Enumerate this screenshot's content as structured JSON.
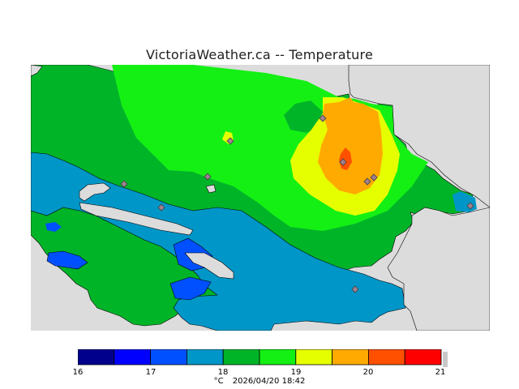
{
  "title": "VictoriaWeather.ca -- Temperature",
  "colors": {
    "land_gray": "#dcdcdc",
    "c1": "#00008c",
    "c2": "#0000ff",
    "c3": "#0050ff",
    "c4": "#0096c8",
    "c5": "#00b428",
    "c6": "#14f014",
    "c7": "#e6ff00",
    "c8": "#ffaa00",
    "c9": "#ff5000",
    "c10": "#ff0000"
  },
  "colorbar": {
    "labels": [
      "16",
      "17",
      "18",
      "19",
      "20",
      "21"
    ]
  },
  "footer": {
    "unit": "°C",
    "datetime": "2026/04/20 18:42"
  }
}
